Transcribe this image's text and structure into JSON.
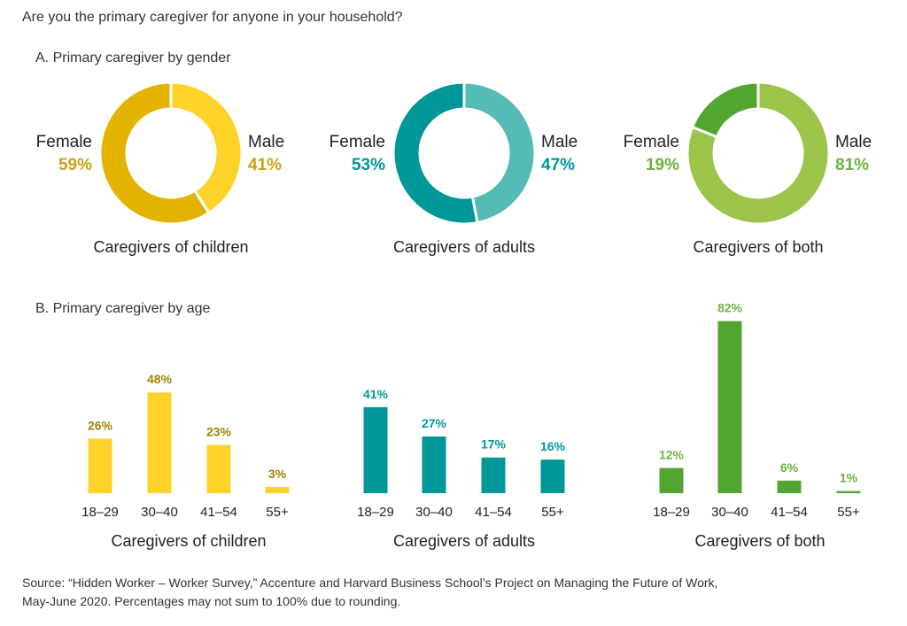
{
  "question": "Are you the primary caregiver for anyone in your household?",
  "footnote": {
    "line1": "Source: “Hidden Worker – Worker Survey,” Accenture and Harvard Business School’s Project on Managing the Future of Work,",
    "line2": "May-June 2020. Percentages may not sum to 100% due to rounding."
  },
  "chart_data": [
    {
      "type": "pie",
      "section_title": "A. Primary caregiver by gender",
      "title": "Caregivers of children",
      "donut": true,
      "slices": [
        {
          "label": "Female",
          "value": 59,
          "text": "59%",
          "color": "#E3B300"
        },
        {
          "label": "Male",
          "value": 41,
          "text": "41%",
          "color": "#FDD32A"
        }
      ],
      "label_color": "#C9A213"
    },
    {
      "type": "pie",
      "title": "Caregivers of adults",
      "donut": true,
      "slices": [
        {
          "label": "Female",
          "value": 53,
          "text": "53%",
          "color": "#00979A"
        },
        {
          "label": "Male",
          "value": 47,
          "text": "47%",
          "color": "#55BBB5"
        }
      ],
      "label_color": "#00979A"
    },
    {
      "type": "pie",
      "title": "Caregivers of both",
      "donut": true,
      "slices": [
        {
          "label": "Female",
          "value": 19,
          "text": "19%",
          "color": "#53A532"
        },
        {
          "label": "Male",
          "value": 81,
          "text": "81%",
          "color": "#9CC44B"
        }
      ],
      "label_color": "#6DB33F"
    },
    {
      "type": "bar",
      "section_title": "B. Primary caregiver by age",
      "title": "Caregivers of children",
      "categories": [
        "18–29",
        "30–40",
        "41–54",
        "55+"
      ],
      "values": [
        26,
        48,
        23,
        3
      ],
      "labels": [
        "26%",
        "48%",
        "23%",
        "3%"
      ],
      "color": "#FDD32A",
      "label_color": "#9E8308"
    },
    {
      "type": "bar",
      "title": "Caregivers of adults",
      "categories": [
        "18–29",
        "30–40",
        "41–54",
        "55+"
      ],
      "values": [
        41,
        27,
        17,
        16
      ],
      "labels": [
        "41%",
        "27%",
        "17%",
        "16%"
      ],
      "color": "#00979A",
      "label_color": "#00979A"
    },
    {
      "type": "bar",
      "title": "Caregivers of both",
      "categories": [
        "18–29",
        "30–40",
        "41–54",
        "55+"
      ],
      "values": [
        12,
        82,
        6,
        1
      ],
      "labels": [
        "12%",
        "82%",
        "6%",
        "1%"
      ],
      "color": "#53A532",
      "label_color": "#6DB33F"
    }
  ]
}
